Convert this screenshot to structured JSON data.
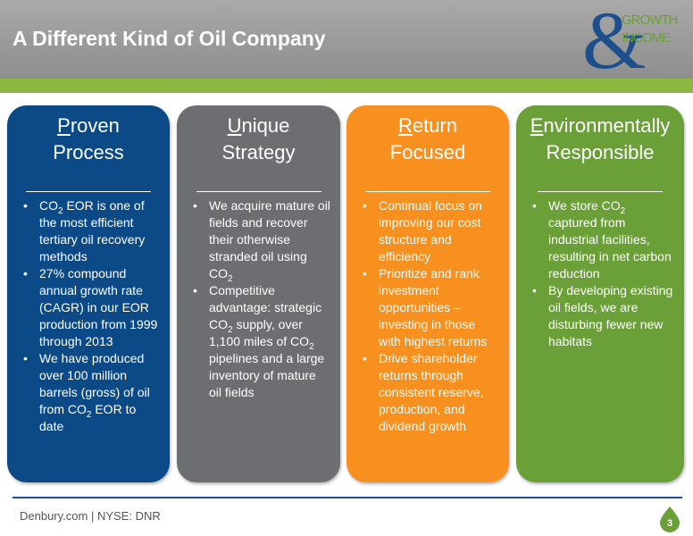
{
  "header": {
    "title": "A Different Kind of Oil Company"
  },
  "logo": {
    "symbol": "&",
    "lines": [
      "GROWTH",
      "INCOME"
    ]
  },
  "cards": [
    {
      "title": [
        "Proven",
        "Process"
      ],
      "bullets": [
        [
          "CO",
          "2",
          " EOR is one of the most efficient tertiary oil recovery methods"
        ],
        [
          "27% compound annual growth rate (CAGR) in our EOR production from 1999 through 2013"
        ],
        [
          "We have produced over 100 million barrels (gross) of oil from CO",
          "2",
          " EOR to date"
        ]
      ]
    },
    {
      "title": [
        "Unique",
        "Strategy"
      ],
      "bullets": [
        [
          "We acquire mature oil fields and recover their otherwise stranded oil using CO",
          "2",
          ""
        ],
        [
          "Competitive advantage: strategic CO",
          "2",
          " supply, over 1,100 miles of CO",
          "2",
          " pipelines and a large inventory of mature oil fields"
        ]
      ]
    },
    {
      "title": [
        "Return",
        "Focused"
      ],
      "bullets": [
        [
          "Continual focus on improving our cost structure and efficiency"
        ],
        [
          "Prioritize and rank investment opportunities – investing in those with highest returns"
        ],
        [
          "Drive shareholder returns through consistent reserve, production, and dividend growth"
        ]
      ]
    },
    {
      "title": [
        "Environmentally",
        "Responsible"
      ],
      "bullets": [
        [
          "We store CO",
          "2",
          " captured from industrial facilities, resulting in net carbon reduction"
        ],
        [
          "By developing existing oil fields, we are disturbing fewer new habitats"
        ]
      ]
    }
  ],
  "footer": {
    "text": "Denbury.com | NYSE: DNR",
    "page": "3"
  }
}
